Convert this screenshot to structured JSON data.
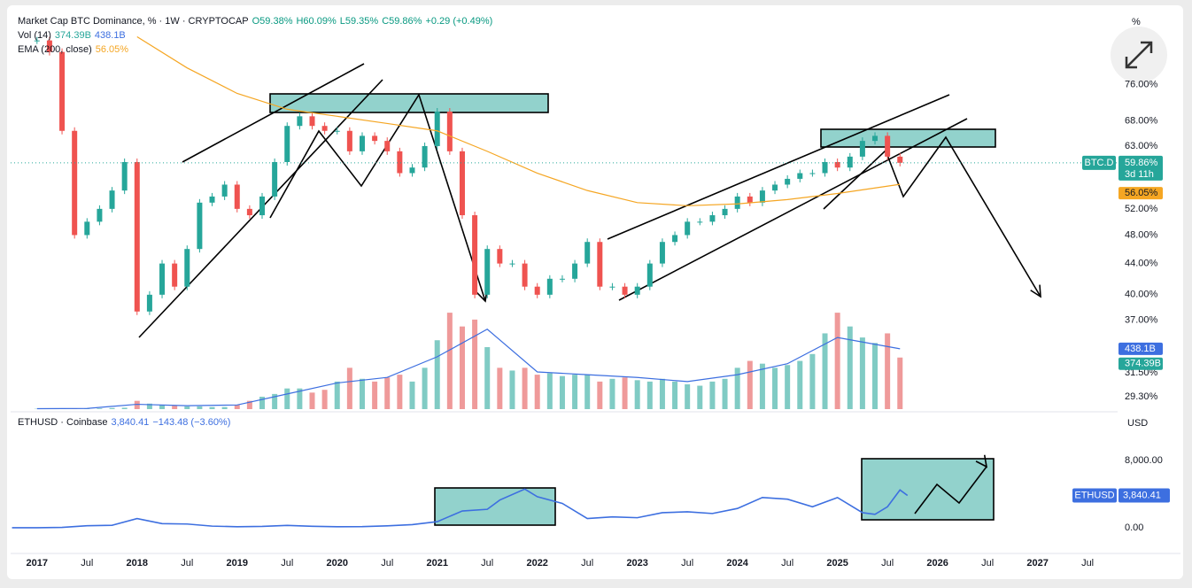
{
  "chart_data": [
    {
      "type": "candlestick",
      "title": "Market Cap BTC Dominance, % · 1W · CRYPTOCAP",
      "ohlc_labels": [
        "O59.38%",
        "H60.09%",
        "L59.35%",
        "C59.86%",
        "+0.29 (+0.49%)"
      ],
      "unit_label": "%",
      "symbol": "BTC.D",
      "last_value_label": "59.86%",
      "countdown": "3d 11h",
      "xlim": [
        2016.63,
        2027.8
      ],
      "log_scale": true,
      "ylim": [
        28.2,
        95.3
      ],
      "xticks": [
        2017,
        {
          "value": 2017.5,
          "label": "Jul"
        },
        2018,
        {
          "value": 2018.5,
          "label": "Jul"
        },
        2019,
        {
          "value": 2019.5,
          "label": "Jul"
        },
        2020,
        {
          "value": 2020.5,
          "label": "Jul"
        },
        2021,
        {
          "value": 2021.5,
          "label": "Jul"
        },
        2022,
        {
          "value": 2022.5,
          "label": "Jul"
        },
        2023,
        {
          "value": 2023.5,
          "label": "Jul"
        },
        2024,
        {
          "value": 2024.5,
          "label": "Jul"
        },
        2025,
        {
          "value": 2025.5,
          "label": "Jul"
        },
        2026,
        {
          "value": 2026.5,
          "label": "Jul"
        },
        2027,
        {
          "value": 2027.5,
          "label": "Jul"
        }
      ],
      "yticks": [
        {
          "value": 76,
          "label": "76.00%"
        },
        {
          "value": 68,
          "label": "68.00%"
        },
        {
          "value": 63,
          "label": "63.00%"
        },
        {
          "value": 52,
          "label": "52.00%"
        },
        {
          "value": 48,
          "label": "48.00%"
        },
        {
          "value": 44,
          "label": "44.00%"
        },
        {
          "value": 40,
          "label": "40.00%"
        },
        {
          "value": 37,
          "label": "37.00%"
        },
        {
          "value": 31.5,
          "label": "31.50%"
        },
        {
          "value": 29.3,
          "label": "29.30%"
        }
      ],
      "up_color": "#26a69a",
      "down_color": "#ef5350",
      "x": [
        2017,
        2017.125,
        2017.25,
        2017.375,
        2017.5,
        2017.625,
        2017.75,
        2017.875,
        2018,
        2018.125,
        2018.25,
        2018.375,
        2018.5,
        2018.625,
        2018.75,
        2018.875,
        2019,
        2019.125,
        2019.25,
        2019.375,
        2019.5,
        2019.625,
        2019.75,
        2019.875,
        2020,
        2020.125,
        2020.25,
        2020.375,
        2020.5,
        2020.625,
        2020.75,
        2020.875,
        2021,
        2021.125,
        2021.25,
        2021.375,
        2021.5,
        2021.625,
        2021.75,
        2021.875,
        2022,
        2022.125,
        2022.25,
        2022.375,
        2022.5,
        2022.625,
        2022.75,
        2022.875,
        2023,
        2023.125,
        2023.25,
        2023.375,
        2023.5,
        2023.625,
        2023.75,
        2023.875,
        2024,
        2024.125,
        2024.25,
        2024.375,
        2024.5,
        2024.625,
        2024.75,
        2024.875,
        2025,
        2025.125,
        2025.25,
        2025.375,
        2025.5,
        2025.625
      ],
      "values": [
        87,
        84,
        66,
        48,
        50,
        52,
        55,
        60,
        38,
        40,
        44,
        41,
        46,
        53,
        54,
        56,
        52,
        51,
        54,
        60,
        67,
        69,
        67,
        66,
        66,
        62,
        65,
        64,
        62,
        58,
        59,
        63,
        70,
        62,
        51,
        40,
        46,
        44,
        44,
        41,
        40,
        42,
        42,
        44,
        47,
        41,
        41,
        40,
        41,
        44,
        47,
        48,
        50,
        50,
        51,
        52,
        54,
        53,
        55,
        56,
        57,
        58,
        58,
        60,
        59,
        61,
        64,
        65,
        61,
        59.86
      ],
      "volume": {
        "name": "Vol (14)",
        "color": "#ef9a9a",
        "up_color": "#80cbc4",
        "vlim": [
          0,
          900
        ],
        "values": [
          2,
          2,
          3,
          3,
          3,
          5,
          8,
          10,
          60,
          40,
          30,
          25,
          20,
          20,
          15,
          15,
          30,
          60,
          90,
          110,
          150,
          150,
          120,
          140,
          200,
          300,
          220,
          200,
          230,
          250,
          200,
          300,
          500,
          700,
          600,
          650,
          450,
          300,
          280,
          300,
          250,
          260,
          240,
          250,
          250,
          200,
          220,
          230,
          210,
          200,
          220,
          200,
          180,
          170,
          200,
          220,
          300,
          350,
          330,
          300,
          320,
          350,
          400,
          550,
          700,
          600,
          520,
          480,
          550,
          374.39
        ],
        "value_label": "374.39B",
        "ma": {
          "color": "#3d6fe0",
          "x": [
            2017,
            2017.5,
            2018,
            2018.5,
            2019,
            2019.5,
            2020,
            2020.5,
            2021,
            2021.5,
            2022,
            2022.5,
            2023,
            2023.5,
            2024,
            2024.5,
            2025,
            2025.625
          ],
          "values": [
            3,
            5,
            35,
            25,
            30,
            110,
            190,
            230,
            380,
            580,
            270,
            250,
            230,
            200,
            250,
            330,
            520,
            438.1
          ],
          "value_label": "438.1B"
        }
      },
      "ema": {
        "name": "EMA (200, close)",
        "color": "#f5a623",
        "x": [
          2018,
          2018.5,
          2019,
          2019.5,
          2020,
          2020.5,
          2021,
          2021.5,
          2022,
          2022.5,
          2023,
          2023.5,
          2024,
          2024.5,
          2025,
          2025.625
        ],
        "values": [
          88,
          80,
          74,
          70.5,
          69,
          67.5,
          66,
          62,
          58,
          55,
          53,
          52.5,
          52.8,
          53.5,
          54.5,
          56.05
        ],
        "value_label": "56.05%"
      }
    },
    {
      "type": "line",
      "title": "ETHUSD · Coinbase",
      "last_value_label": "3,840.41",
      "change_label": "−143.48 (−3.60%)",
      "unit_label": "USD",
      "symbol": "ETHUSD",
      "color": "#3d6fe0",
      "xlim": [
        2016.63,
        2027.8
      ],
      "ylim": [
        -3050,
        11160
      ],
      "yticks": [
        {
          "value": 8000,
          "label": "8,000.00"
        },
        {
          "value": 0,
          "label": "0.00"
        }
      ],
      "x": [
        2016.75,
        2017,
        2017.25,
        2017.5,
        2017.75,
        2018,
        2018.25,
        2018.5,
        2018.75,
        2019,
        2019.25,
        2019.5,
        2019.75,
        2020,
        2020.25,
        2020.5,
        2020.75,
        2021,
        2021.25,
        2021.5,
        2021.625,
        2021.875,
        2022,
        2022.25,
        2022.5,
        2022.75,
        2023,
        2023.25,
        2023.5,
        2023.75,
        2024,
        2024.25,
        2024.5,
        2024.75,
        2025,
        2025.25,
        2025.375,
        2025.5,
        2025.625,
        2025.7
      ],
      "values": [
        10,
        8,
        50,
        250,
        300,
        1100,
        500,
        450,
        200,
        130,
        170,
        290,
        180,
        130,
        140,
        230,
        380,
        730,
        2000,
        2200,
        3300,
        4600,
        3700,
        2900,
        1100,
        1300,
        1200,
        1800,
        1900,
        1700,
        2300,
        3600,
        3400,
        2500,
        3600,
        1800,
        1600,
        2500,
        4500,
        3840.41
      ]
    }
  ]
}
